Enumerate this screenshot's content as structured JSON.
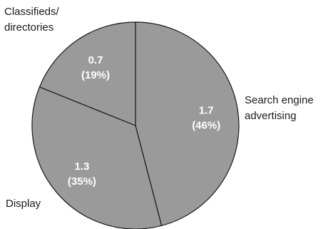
{
  "colors": {
    "slice_fill": "#9a9a9a",
    "slice_stroke": "#1a1a1a",
    "value_text": "#ffffff",
    "label_text": "#1a1a1a"
  },
  "chart_data": {
    "type": "pie",
    "title": "",
    "start_angle_deg": 0,
    "direction": "clockwise",
    "slices": [
      {
        "category_lines": [
          "Search engine",
          "advertising"
        ],
        "value": 1.7,
        "value_text": "1.7",
        "percent_text": "(46%)"
      },
      {
        "category_lines": [
          "Display"
        ],
        "value": 1.3,
        "value_text": "1.3",
        "percent_text": "(35%)"
      },
      {
        "category_lines": [
          "Classifieds/",
          "directories"
        ],
        "value": 0.7,
        "value_text": "0.7",
        "percent_text": "(19%)"
      }
    ]
  }
}
